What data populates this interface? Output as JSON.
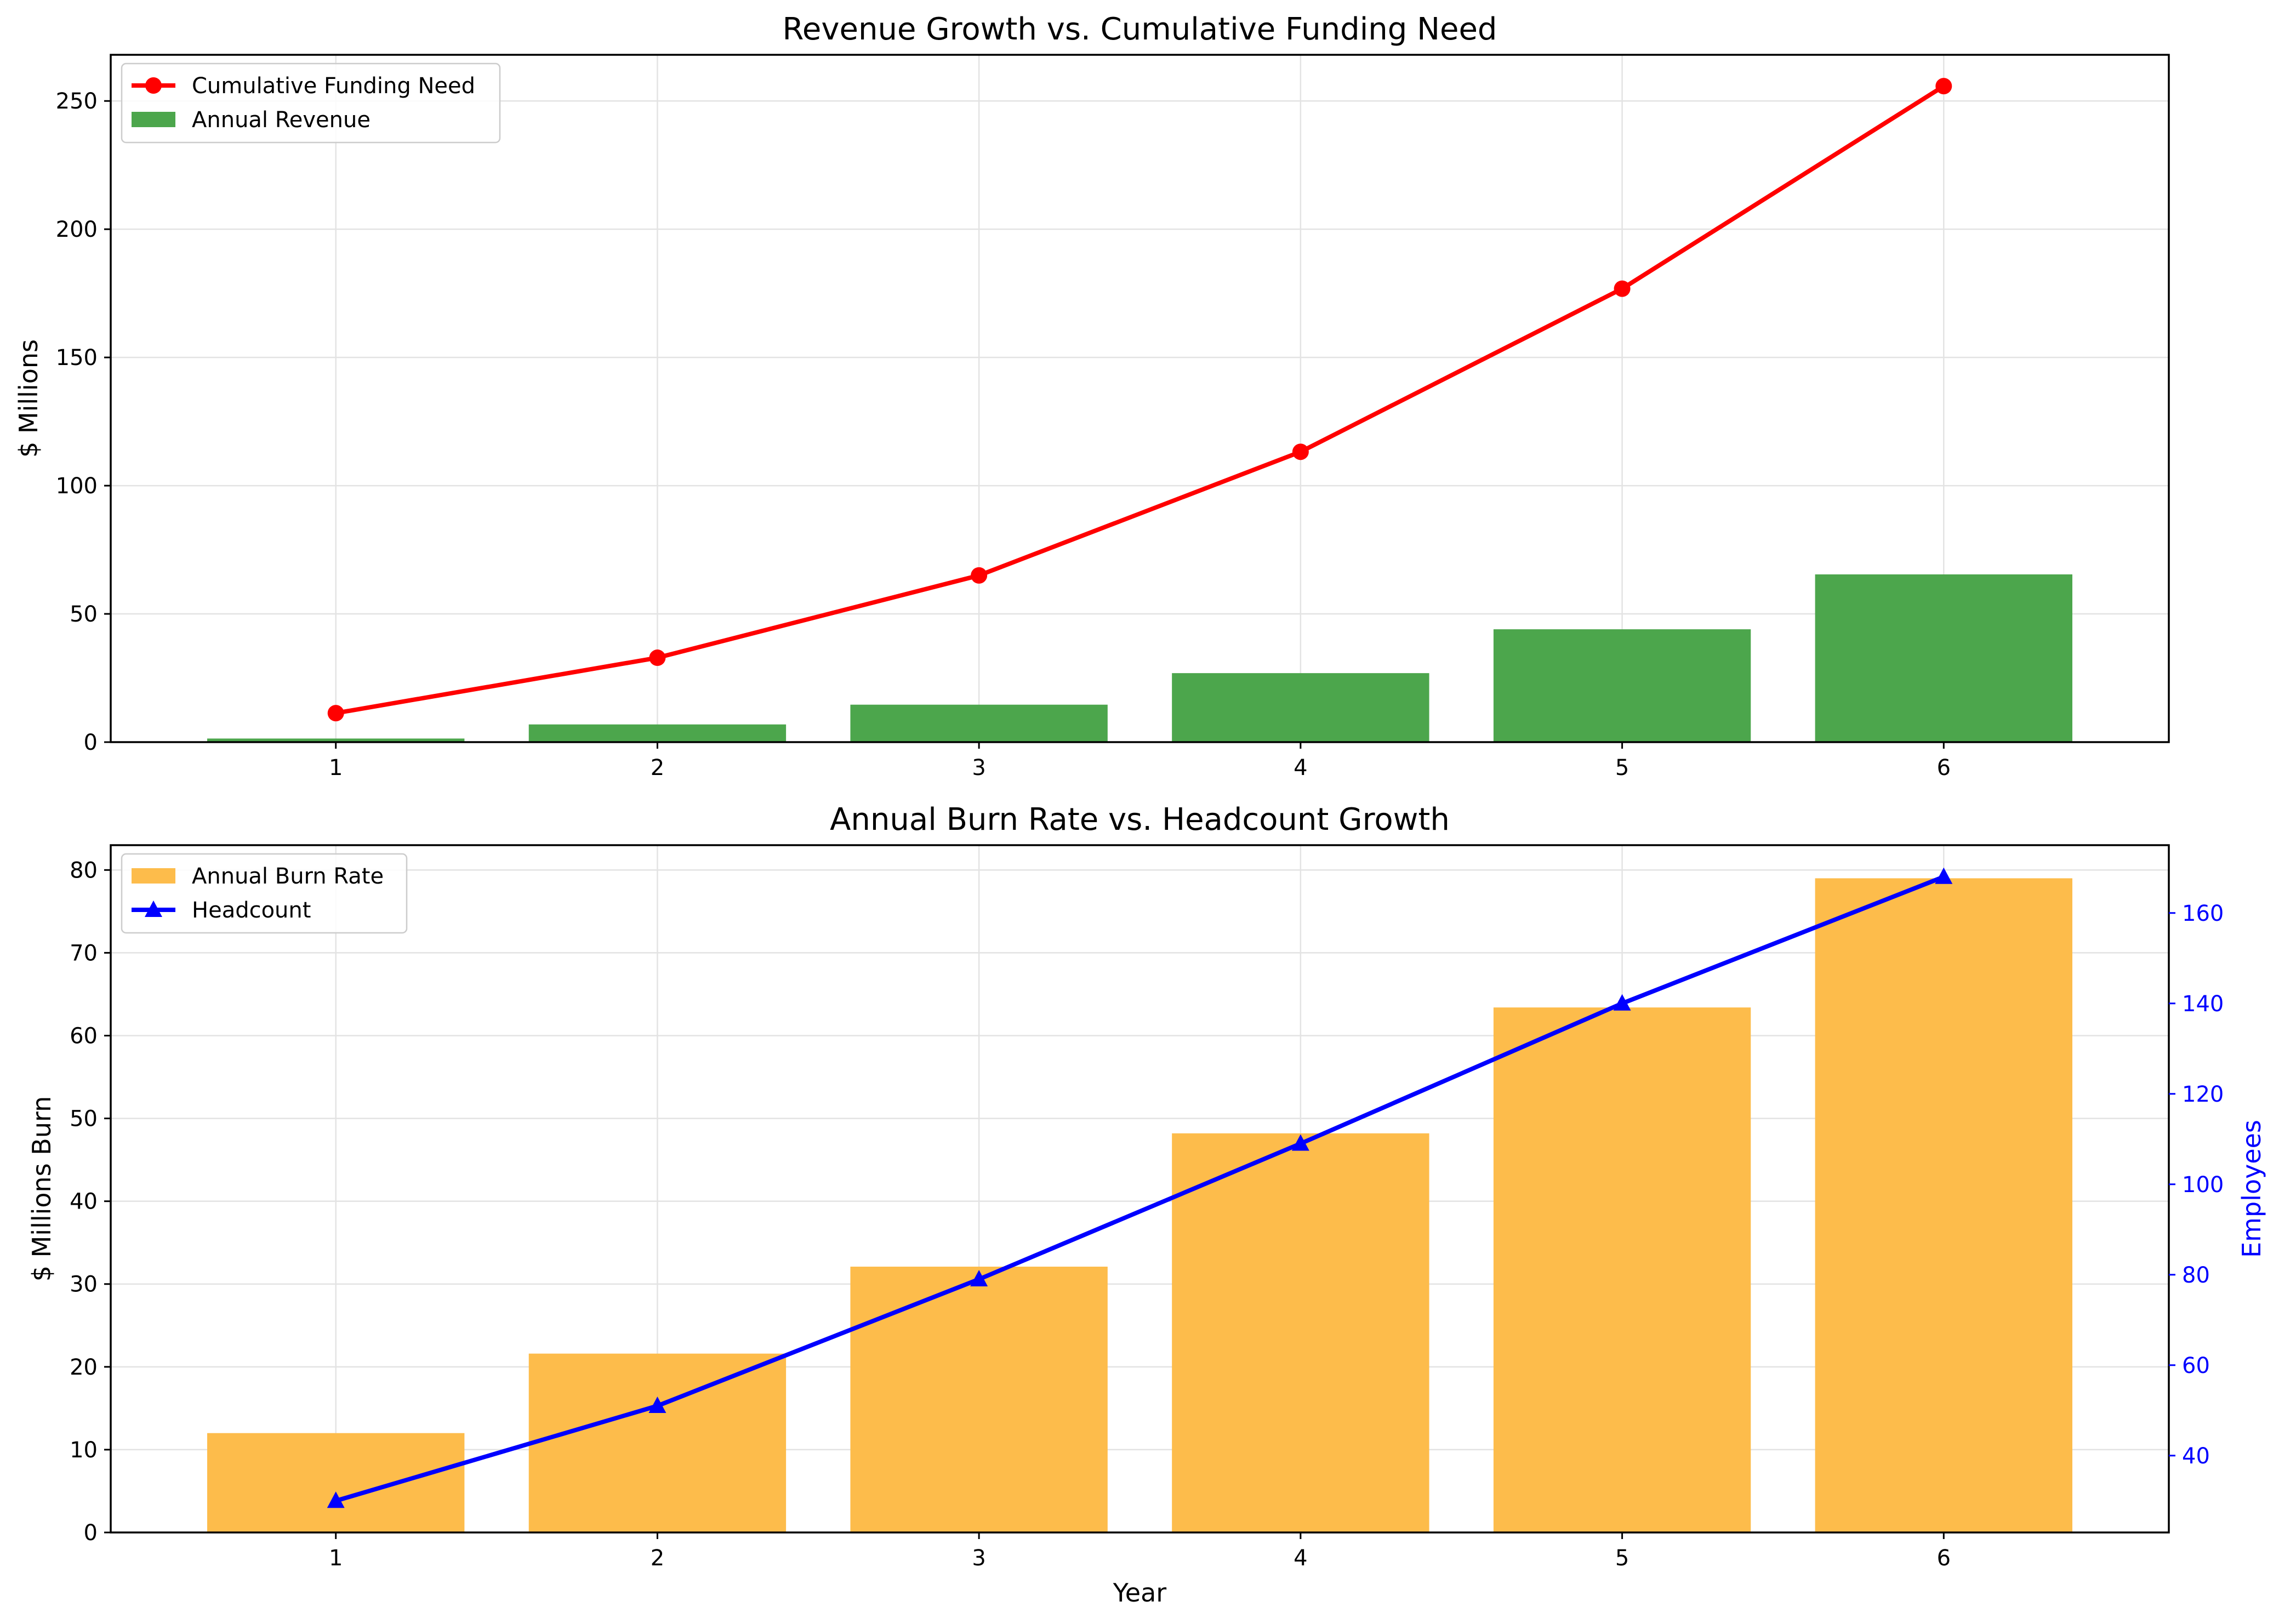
{
  "chart_data": [
    {
      "type": "bar",
      "title": "Revenue Growth vs. Cumulative Funding Need",
      "xlabel": "",
      "ylabel": "$ Millions",
      "categories": [
        1,
        2,
        3,
        4,
        5,
        6
      ],
      "ylim": [
        0,
        268
      ],
      "yticks": [
        0,
        50,
        100,
        150,
        200,
        250
      ],
      "grid": true,
      "legend_position": "top-left",
      "series": [
        {
          "name": "Cumulative Funding Need",
          "kind": "line",
          "marker": "circle",
          "color": "#ff0000",
          "values": [
            11.3,
            32.9,
            65.0,
            113.2,
            176.8,
            255.8
          ]
        },
        {
          "name": "Annual Revenue",
          "kind": "bar",
          "color": "#4ca64c",
          "values": [
            1.4,
            6.9,
            14.6,
            26.9,
            44.0,
            65.4
          ]
        }
      ]
    },
    {
      "type": "bar",
      "title": "Annual Burn Rate vs. Headcount Growth",
      "xlabel": "Year",
      "ylabel": "$ Millions Burn",
      "y2label": "Employees",
      "categories": [
        1,
        2,
        3,
        4,
        5,
        6
      ],
      "ylim": [
        0,
        83
      ],
      "yticks": [
        0,
        10,
        20,
        30,
        40,
        50,
        60,
        70,
        80
      ],
      "y2lim": [
        23,
        175
      ],
      "y2ticks": [
        40,
        60,
        80,
        100,
        120,
        140,
        160
      ],
      "grid": true,
      "legend_position": "top-left",
      "series": [
        {
          "name": "Annual Burn Rate",
          "kind": "bar",
          "color": "#fdbc4b",
          "values": [
            12.0,
            21.6,
            32.1,
            48.2,
            63.4,
            79.0
          ]
        },
        {
          "name": "Headcount",
          "kind": "line",
          "axis": "right",
          "marker": "triangle",
          "color": "#0000ff",
          "values": [
            30,
            51,
            79,
            109,
            140,
            168
          ]
        }
      ]
    }
  ]
}
